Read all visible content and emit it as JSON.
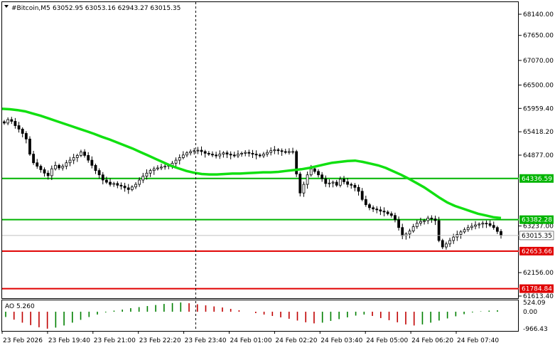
{
  "header": {
    "symbol": "#Bitcoin,M5",
    "ohlc": "63052.95 63053.16 62943.27 63015.35",
    "indicator": "AO 5.260"
  },
  "price_axis": {
    "ticks": [
      "68140.00",
      "67650.00",
      "67070.00",
      "66500.00",
      "65959.40",
      "65418.20",
      "64877.00",
      "63237.00",
      "62156.00",
      "61613.40"
    ],
    "tick_values": [
      68140,
      67650,
      67070,
      66500,
      65959.4,
      65418.2,
      64877,
      63237,
      62156,
      61613.4
    ]
  },
  "levels": [
    {
      "label": "64336.59",
      "value": 64336.59,
      "color": "#00b400",
      "bg": "#00b400",
      "fg": "#ffffff"
    },
    {
      "label": "63382.28",
      "value": 63382.28,
      "color": "#00b400",
      "bg": "#00b400",
      "fg": "#ffffff"
    },
    {
      "label": "62653.66",
      "value": 62653.66,
      "color": "#e00000",
      "bg": "#e00000",
      "fg": "#ffffff"
    },
    {
      "label": "61784.84",
      "value": 61784.84,
      "color": "#e00000",
      "bg": "#e00000",
      "fg": "#ffffff"
    }
  ],
  "current_price": {
    "label": "63015.35",
    "value": 63015.35
  },
  "ao_axis": {
    "ticks": [
      "524.09",
      "0.00",
      "-966.43"
    ],
    "tick_values": [
      524.09,
      0,
      -966.43
    ]
  },
  "time_axis": [
    "23 Feb 2026",
    "23 Feb 19:40",
    "23 Feb 21:00",
    "23 Feb 22:20",
    "23 Feb 23:40",
    "24 Feb 01:00",
    "24 Feb 02:20",
    "24 Feb 03:40",
    "24 Feb 05:00",
    "24 Feb 06:20",
    "24 Feb 07:40"
  ],
  "colors": {
    "ma": "#11e011",
    "ao_up": "#008000",
    "ao_down": "#c00000",
    "candle": "#000000",
    "vline": "#000000"
  },
  "chart_data": {
    "type": "candlestick",
    "closes": [
      65620,
      65700,
      65660,
      65560,
      65480,
      65380,
      65250,
      64900,
      64700,
      64620,
      64540,
      64460,
      64400,
      64560,
      64640,
      64580,
      64620,
      64700,
      64760,
      64820,
      64870,
      64950,
      64870,
      64760,
      64640,
      64520,
      64420,
      64300,
      64250,
      64200,
      64220,
      64180,
      64160,
      64120,
      64080,
      64140,
      64200,
      64300,
      64390,
      64460,
      64520,
      64560,
      64580,
      64600,
      64620,
      64640,
      64690,
      64760,
      64820,
      64880,
      64930,
      64960,
      64980,
      64990,
      64960,
      64920,
      64900,
      64880,
      64860,
      64900,
      64930,
      64900,
      64880,
      64860,
      64900,
      64920,
      64940,
      64920,
      64900,
      64880,
      64860,
      64900,
      64940,
      64980,
      65000,
      64980,
      64960,
      64940,
      64960,
      64960,
      64440,
      64000,
      64200,
      64420,
      64560,
      64500,
      64420,
      64330,
      64220,
      64230,
      64250,
      64180,
      64320,
      64260,
      64200,
      64180,
      64130,
      64040,
      63850,
      63730,
      63660,
      63630,
      63610,
      63580,
      63560,
      63520,
      63480,
      63380,
      63200,
      63010,
      63050,
      63120,
      63220,
      63300,
      63340,
      63360,
      63420,
      63400,
      63360,
      62900,
      62750,
      62820,
      62900,
      62980,
      63040,
      63100,
      63150,
      63200,
      63230,
      63260,
      63280,
      63300,
      63290,
      63250,
      63200,
      63110,
      63015
    ],
    "ma": [
      65950,
      65940,
      65920,
      65890,
      65840,
      65790,
      65730,
      65670,
      65610,
      65550,
      65490,
      65430,
      65370,
      65300,
      65240,
      65170,
      65100,
      65030,
      64950,
      64870,
      64790,
      64710,
      64630,
      64570,
      64510,
      64470,
      64440,
      64430,
      64430,
      64440,
      64450,
      64450,
      64460,
      64470,
      64480,
      64480,
      64490,
      64510,
      64530,
      64550,
      64580,
      64620,
      64660,
      64700,
      64720,
      64740,
      64750,
      64720,
      64680,
      64640,
      64580,
      64500,
      64420,
      64330,
      64230,
      64130,
      64010,
      63890,
      63780,
      63700,
      63640,
      63580,
      63520,
      63480,
      63440,
      63420
    ],
    "ao": [
      -300,
      -450,
      -620,
      -760,
      -880,
      -960,
      -900,
      -780,
      -620,
      -460,
      -300,
      -160,
      -40,
      60,
      120,
      200,
      260,
      320,
      380,
      440,
      490,
      524,
      480,
      420,
      360,
      300,
      240,
      160,
      80,
      0,
      -80,
      -160,
      -240,
      -320,
      -400,
      -500,
      -600,
      -660,
      -620,
      -520,
      -420,
      -320,
      -220,
      -160,
      -240,
      -360,
      -480,
      -600,
      -720,
      -780,
      -720,
      -620,
      -500,
      -380,
      -260,
      -140,
      -40,
      20,
      60,
      80
    ],
    "ylim": [
      61613.4,
      68140
    ]
  }
}
